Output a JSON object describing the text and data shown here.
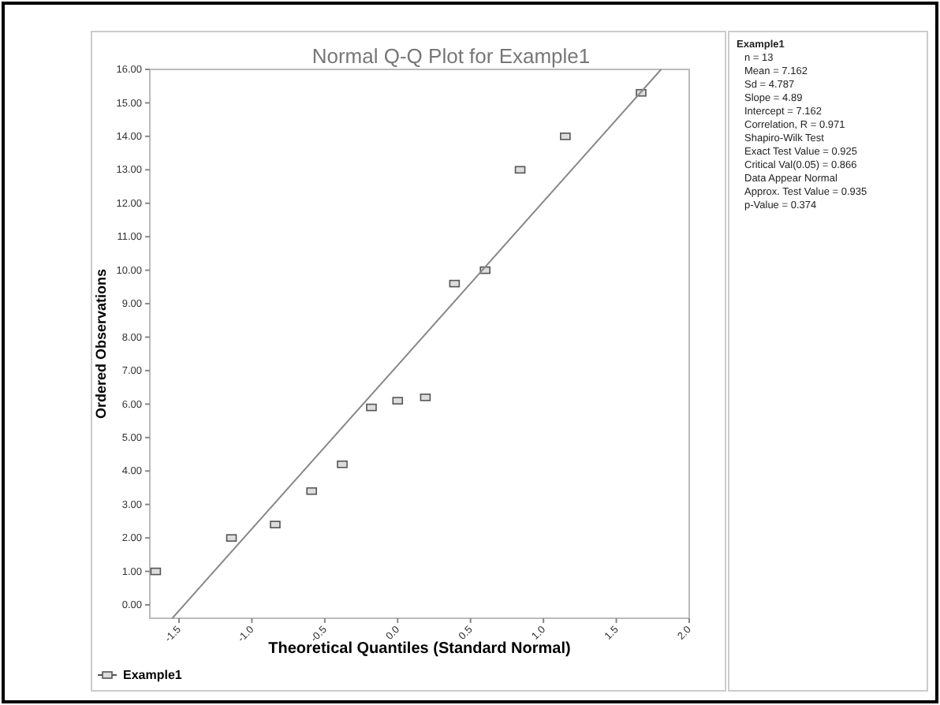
{
  "chart_data": {
    "type": "scatter",
    "title": "Normal Q-Q Plot for Example1",
    "xlabel": "Theoretical Quantiles (Standard Normal)",
    "ylabel": "Ordered Observations",
    "series": [
      {
        "name": "Example1",
        "color": "#555555",
        "x": [
          -1.66,
          -1.14,
          -0.84,
          -0.59,
          -0.38,
          -0.18,
          0.0,
          0.19,
          0.39,
          0.6,
          0.84,
          1.15,
          1.67
        ],
        "values": [
          1.0,
          2.0,
          2.4,
          3.4,
          4.2,
          5.9,
          6.1,
          6.2,
          9.6,
          10.0,
          13.0,
          14.0,
          15.3
        ]
      },
      {
        "type": "line",
        "marker": "none",
        "color": "#888888",
        "x": [
          -1.546,
          1.807
        ],
        "values": [
          -0.4,
          16
        ]
      }
    ],
    "xlim": [
      -1.7,
      2.0
    ],
    "xticks": [
      {
        "value": -1.5,
        "label": "-1.5"
      },
      {
        "value": -1,
        "label": "-1.0"
      },
      {
        "value": -0.5,
        "label": "-0.5"
      },
      {
        "value": 0,
        "label": "0.0"
      },
      {
        "value": 0.5,
        "label": "0.5"
      },
      {
        "value": 1,
        "label": "1.0"
      },
      {
        "value": 1.5,
        "label": "1.5"
      },
      {
        "value": 2,
        "label": "2.0"
      }
    ],
    "ylim": [
      -0.4,
      16
    ],
    "yticks": [
      {
        "value": 0,
        "label": "0.00"
      },
      {
        "value": 1,
        "label": "1.00"
      },
      {
        "value": 2,
        "label": "2.00"
      },
      {
        "value": 3,
        "label": "3.00"
      },
      {
        "value": 4,
        "label": "4.00"
      },
      {
        "value": 5,
        "label": "5.00"
      },
      {
        "value": 6,
        "label": "6.00"
      },
      {
        "value": 7,
        "label": "7.00"
      },
      {
        "value": 8,
        "label": "8.00"
      },
      {
        "value": 9,
        "label": "9.00"
      },
      {
        "value": 10,
        "label": "10.00"
      },
      {
        "value": 11,
        "label": "11.00"
      },
      {
        "value": 12,
        "label": "12.00"
      },
      {
        "value": 13,
        "label": "13.00"
      },
      {
        "value": 14,
        "label": "14.00"
      },
      {
        "value": 15,
        "label": "15.00"
      },
      {
        "value": 16,
        "label": "16.00"
      }
    ],
    "grid": false,
    "legend": "bottom left",
    "marker": "square",
    "annotations": [
      "Example1",
      "n = 13",
      "Mean = 7.162",
      "Sd = 4.787",
      "Slope = 4.89",
      "Intercept = 7.162",
      "Correlation, R = 0.971",
      "Shapiro-Wilk Test",
      "Exact Test Value = 0.925",
      "Critical Val(0.05) = 0.866",
      "Data Appear Normal",
      "Approx. Test Value = 0.935",
      "p-Value = 0.374"
    ]
  }
}
